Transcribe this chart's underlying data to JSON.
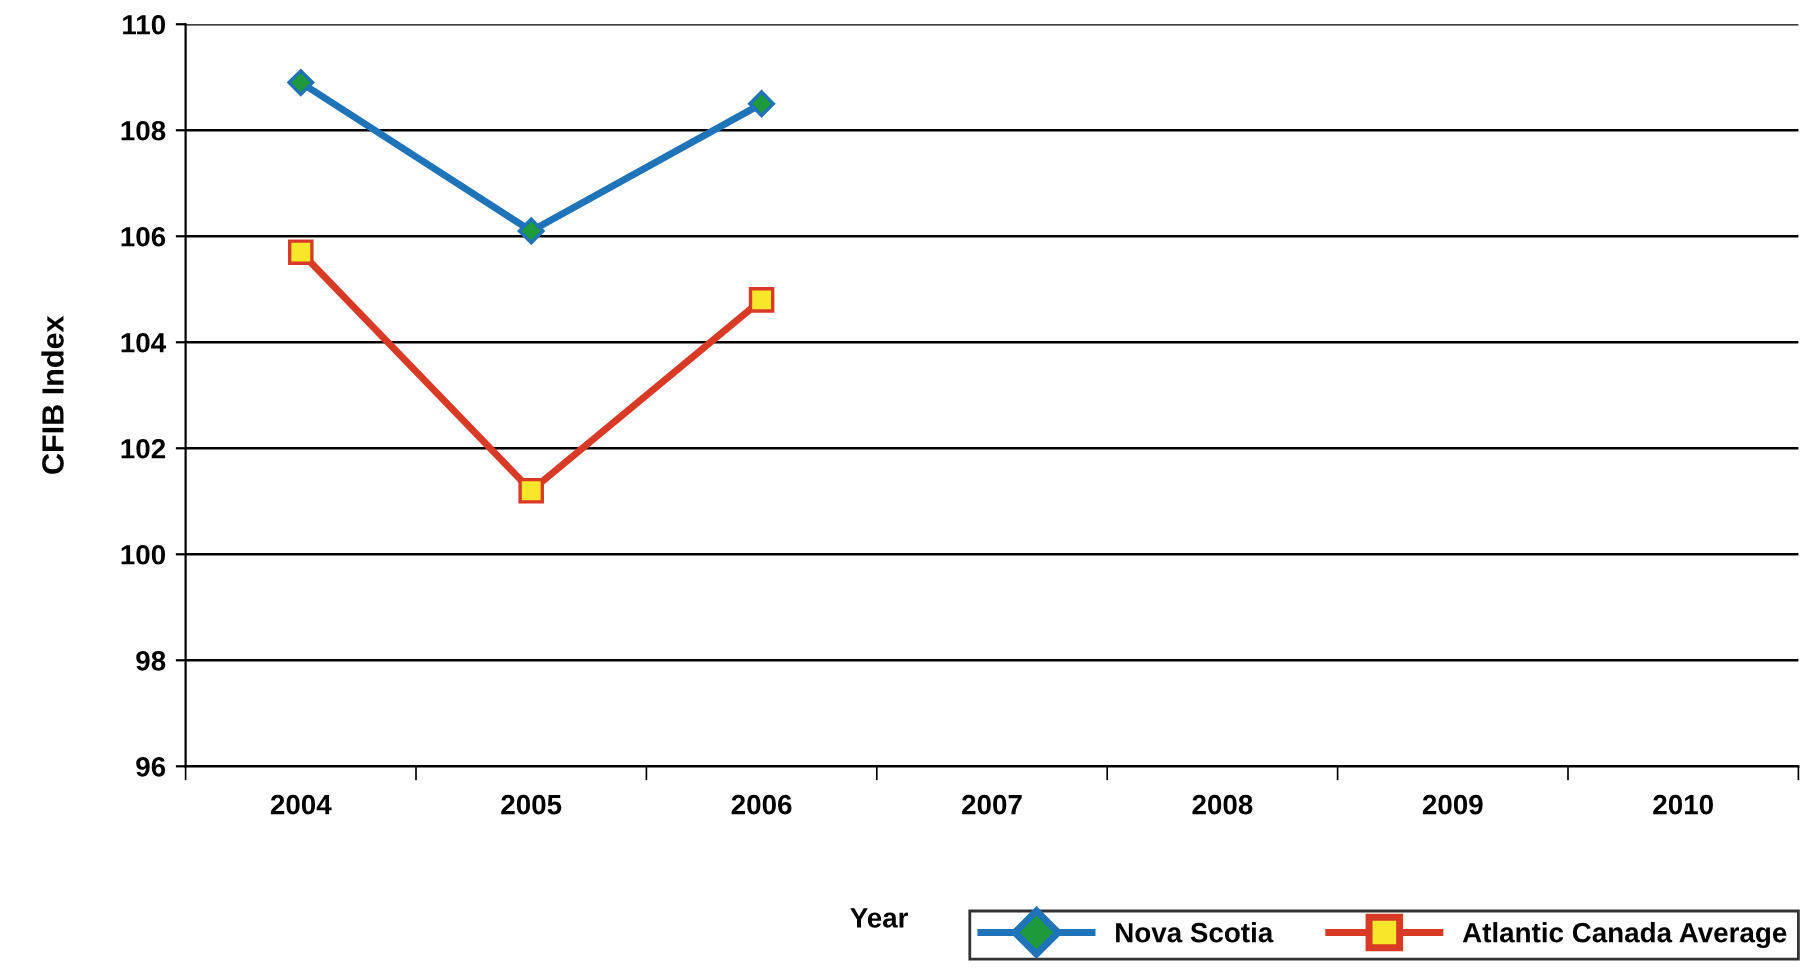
{
  "chart_data": {
    "type": "line",
    "xlabel": "Year",
    "ylabel": "CFIB Index",
    "categories": [
      "2004",
      "2005",
      "2006",
      "2007",
      "2008",
      "2009",
      "2010"
    ],
    "series": [
      {
        "name": "Nova Scotia",
        "color": "#1f73b8",
        "colors": [
          "#1e9a3c",
          "#1e9a3c",
          "#1e9a3c",
          null,
          null,
          null,
          null
        ],
        "marker": "diamond",
        "values": [
          108.9,
          106.1,
          108.5,
          null,
          null,
          null,
          null
        ]
      },
      {
        "name": "Atlantic Canada Average",
        "color": "#d93a26",
        "colors": [
          "#f7e62a",
          "#f7e62a",
          "#f7e62a",
          null,
          null,
          null,
          null
        ],
        "marker": "square",
        "values": [
          105.7,
          101.2,
          104.8,
          null,
          null,
          null,
          null
        ]
      }
    ],
    "ylim": [
      96,
      110
    ],
    "yticks": [
      96,
      98,
      100,
      102,
      104,
      106,
      108,
      110
    ],
    "grid": "y",
    "legend": "bottom right",
    "line_style": "solid"
  }
}
